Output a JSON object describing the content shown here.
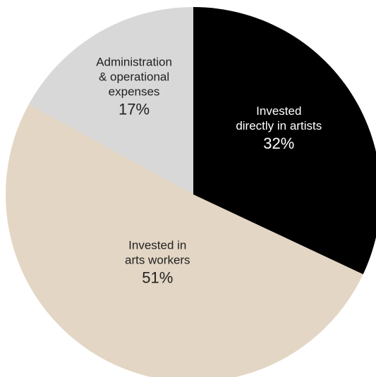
{
  "chart_data": {
    "type": "pie",
    "title": "",
    "start_angle_deg": 0,
    "direction": "clockwise",
    "legend": "none",
    "slices": [
      {
        "name": "Invested directly in artists",
        "label_lines": [
          "Invested",
          "directly in artists"
        ],
        "value": 32,
        "value_label": "32%",
        "color": "#000000",
        "text_color": "#ffffff"
      },
      {
        "name": "Invested in arts workers",
        "label_lines": [
          "Invested in",
          "arts workers"
        ],
        "value": 51,
        "value_label": "51%",
        "color": "#e3d6c4",
        "text_color": "#222222"
      },
      {
        "name": "Administration & operational expenses",
        "label_lines": [
          "Administration",
          "& operational",
          "expenses"
        ],
        "value": 17,
        "value_label": "17%",
        "color": "#d8d8d8",
        "text_color": "#222222"
      }
    ]
  }
}
